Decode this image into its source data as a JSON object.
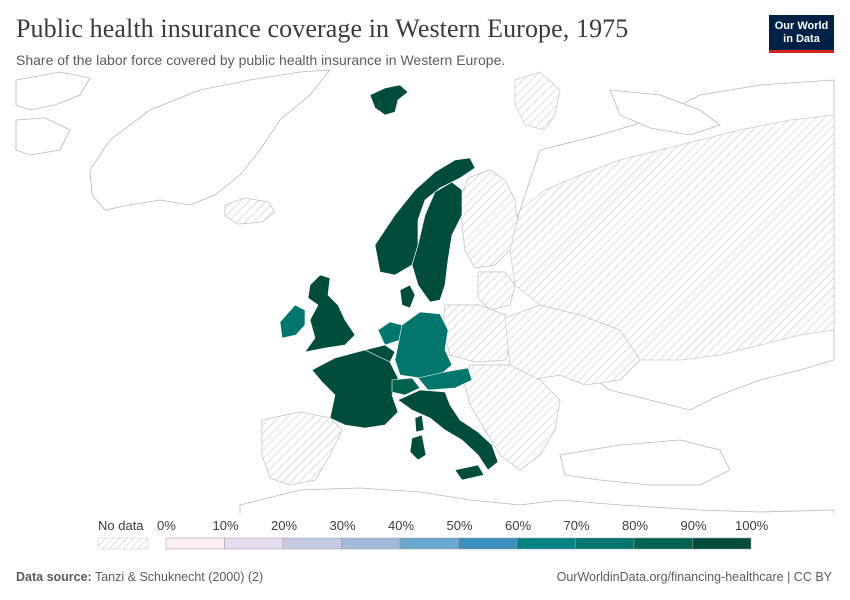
{
  "header": {
    "title": "Public health insurance coverage in Western Europe, 1975",
    "subtitle": "Share of the labor force covered by public health insurance in Western Europe."
  },
  "logo": {
    "line1": "Our World",
    "line2": "in Data",
    "bg": "#002147",
    "accent": "#ce261e"
  },
  "legend": {
    "no_data_label": "No data",
    "ticks": [
      "0%",
      "10%",
      "20%",
      "30%",
      "40%",
      "50%",
      "60%",
      "70%",
      "80%",
      "90%",
      "100%"
    ],
    "colors": [
      "#fcf0f4",
      "#e5dcef",
      "#c6cbe4",
      "#a2b9d9",
      "#6aa8cd",
      "#3d8fbe",
      "#008484",
      "#00766c",
      "#00624f",
      "#004d3c"
    ]
  },
  "map_data": {
    "year": "1975",
    "countries": [
      {
        "name": "Norway",
        "bin": 9
      },
      {
        "name": "Sweden",
        "bin": 9
      },
      {
        "name": "Denmark",
        "bin": 9
      },
      {
        "name": "United Kingdom",
        "bin": 9
      },
      {
        "name": "Ireland",
        "bin": 7
      },
      {
        "name": "Netherlands",
        "bin": 7
      },
      {
        "name": "Belgium",
        "bin": 9
      },
      {
        "name": "Germany",
        "bin": 7
      },
      {
        "name": "France",
        "bin": 9
      },
      {
        "name": "Switzerland",
        "bin": 8
      },
      {
        "name": "Austria",
        "bin": 7
      },
      {
        "name": "Italy",
        "bin": 9
      },
      {
        "name": "Svalbard",
        "bin": 9
      }
    ]
  },
  "footer": {
    "source_label": "Data source:",
    "source_text": "Tanzi & Schuknecht (2000) (2)",
    "right": "OurWorldinData.org/financing-healthcare | CC BY"
  }
}
